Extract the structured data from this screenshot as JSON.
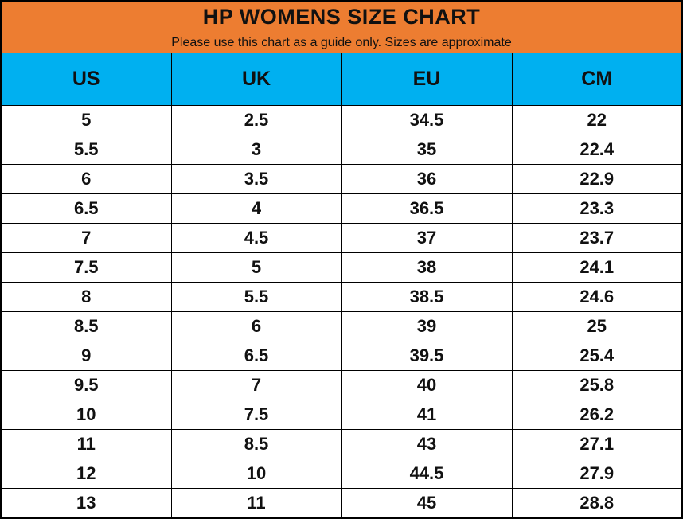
{
  "chart_data": {
    "type": "table",
    "title": "HP WOMENS SIZE CHART",
    "subtitle": "Please use this chart as a guide only. Sizes are approximate",
    "columns": [
      "US",
      "UK",
      "EU",
      "CM"
    ],
    "rows": [
      [
        "5",
        "2.5",
        "34.5",
        "22"
      ],
      [
        "5.5",
        "3",
        "35",
        "22.4"
      ],
      [
        "6",
        "3.5",
        "36",
        "22.9"
      ],
      [
        "6.5",
        "4",
        "36.5",
        "23.3"
      ],
      [
        "7",
        "4.5",
        "37",
        "23.7"
      ],
      [
        "7.5",
        "5",
        "38",
        "24.1"
      ],
      [
        "8",
        "5.5",
        "38.5",
        "24.6"
      ],
      [
        "8.5",
        "6",
        "39",
        "25"
      ],
      [
        "9",
        "6.5",
        "39.5",
        "25.4"
      ],
      [
        "9.5",
        "7",
        "40",
        "25.8"
      ],
      [
        "10",
        "7.5",
        "41",
        "26.2"
      ],
      [
        "11",
        "8.5",
        "43",
        "27.1"
      ],
      [
        "12",
        "10",
        "44.5",
        "27.9"
      ],
      [
        "13",
        "11",
        "45",
        "28.8"
      ]
    ],
    "layout": {
      "grid": "on",
      "column_widths": "equal"
    }
  },
  "colors": {
    "title_bg": "#ED7D31",
    "header_bg": "#00B0F0",
    "border": "#000000",
    "text": "#111111",
    "row_bg": "#FFFFFF"
  }
}
